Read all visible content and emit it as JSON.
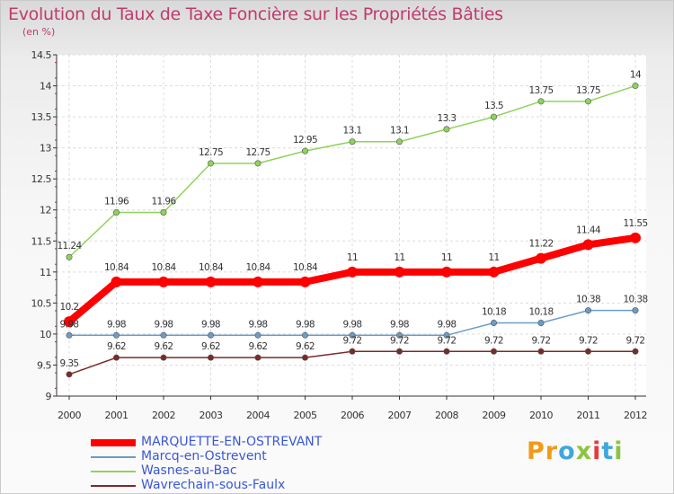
{
  "title": "Evolution du Taux de Taxe Foncière sur les Propriétés Bâties",
  "subtitle": "(en %)",
  "logo": "Proxiti",
  "chart_data": {
    "type": "line",
    "categories": [
      "2000",
      "2001",
      "2002",
      "2003",
      "2004",
      "2005",
      "2006",
      "2007",
      "2008",
      "2009",
      "2010",
      "2011",
      "2012"
    ],
    "ylim": [
      9,
      14.5
    ],
    "yticks": [
      "9",
      "9.5",
      "10",
      "10.5",
      "11",
      "11.5",
      "12",
      "12.5",
      "13",
      "13.5",
      "14",
      "14.5"
    ],
    "grid": true,
    "legend_position": "bottom-left",
    "series": [
      {
        "name": "MARQUETTE-EN-OSTREVANT",
        "color": "#ff0000",
        "values": [
          10.2,
          10.84,
          10.84,
          10.84,
          10.84,
          10.84,
          11,
          11,
          11,
          11,
          11.22,
          11.44,
          11.55
        ],
        "labels": [
          "10.2",
          "10.84",
          "10.84",
          "10.84",
          "10.84",
          "10.84",
          "11",
          "11",
          "11",
          "11",
          "11.22",
          "11.44",
          "11.55"
        ]
      },
      {
        "name": "Marcq-en-Ostrevent",
        "color": "#6b9cc8",
        "values": [
          9.98,
          9.98,
          9.98,
          9.98,
          9.98,
          9.98,
          9.98,
          9.98,
          9.98,
          10.18,
          10.18,
          10.38,
          10.38
        ],
        "labels": [
          "9.98",
          "9.98",
          "9.98",
          "9.98",
          "9.98",
          "9.98",
          "9.98",
          "9.98",
          "9.98",
          "10.18",
          "10.18",
          "10.38",
          "10.38"
        ]
      },
      {
        "name": "Wasnes-au-Bac",
        "color": "#8fd35a",
        "values": [
          11.24,
          11.96,
          11.96,
          12.75,
          12.75,
          12.95,
          13.1,
          13.1,
          13.3,
          13.5,
          13.75,
          13.75,
          14
        ],
        "labels": [
          "11.24",
          "11.96",
          "11.96",
          "12.75",
          "12.75",
          "12.95",
          "13.1",
          "13.1",
          "13.3",
          "13.5",
          "13.75",
          "13.75",
          "14"
        ]
      },
      {
        "name": "Wavrechain-sous-Faulx",
        "color": "#7a2a2a",
        "values": [
          9.35,
          9.62,
          9.62,
          9.62,
          9.62,
          9.62,
          9.72,
          9.72,
          9.72,
          9.72,
          9.72,
          9.72,
          9.72
        ],
        "labels": [
          "9.35",
          "9.62",
          "9.62",
          "9.62",
          "9.62",
          "9.62",
          "9.72",
          "9.72",
          "9.72",
          "9.72",
          "9.72",
          "9.72",
          "9.72"
        ]
      }
    ]
  }
}
